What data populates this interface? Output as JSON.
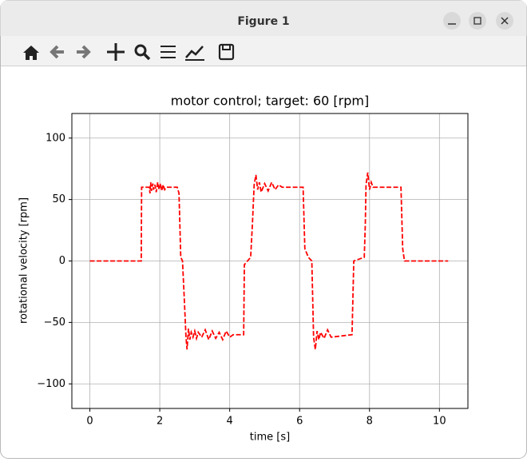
{
  "window": {
    "title": "Figure 1"
  },
  "chart_data": {
    "type": "line",
    "title": "motor control; target: 60 [rpm]",
    "x_label": "time [s]",
    "y_label": "rotational velocity [rpm]",
    "x": [
      0,
      1.47,
      1.48,
      1.7,
      1.72,
      1.74,
      1.76,
      1.8,
      1.82,
      1.86,
      1.9,
      1.94,
      1.98,
      2.02,
      2.06,
      2.1,
      2.14,
      2.2,
      2.5,
      2.55,
      2.6,
      2.65,
      2.7,
      2.75,
      2.78,
      2.82,
      2.86,
      2.9,
      2.95,
      3.0,
      3.05,
      3.1,
      3.2,
      3.3,
      3.4,
      3.5,
      3.6,
      3.7,
      3.8,
      3.9,
      4.0,
      4.1,
      4.4,
      4.42,
      4.6,
      4.65,
      4.7,
      4.75,
      4.8,
      4.85,
      4.9,
      5.0,
      5.1,
      5.2,
      5.3,
      5.4,
      5.5,
      6.1,
      6.15,
      6.25,
      6.35,
      6.4,
      6.45,
      6.5,
      6.55,
      6.6,
      6.7,
      6.8,
      6.9,
      7.5,
      7.55,
      7.85,
      7.88,
      7.9,
      7.95,
      8.0,
      8.05,
      8.1,
      8.9,
      8.95,
      9.0,
      10.25
    ],
    "series": [
      {
        "color": "#ff0000",
        "dashed": true,
        "values": [
          0,
          0,
          60,
          60,
          55,
          64,
          57,
          63,
          58,
          62,
          56,
          64,
          58,
          63,
          57,
          62,
          58,
          60,
          60,
          55,
          3,
          0,
          -30,
          -62,
          -72,
          -55,
          -64,
          -58,
          -62,
          -57,
          -63,
          -58,
          -62,
          -56,
          -64,
          -57,
          -63,
          -58,
          -64,
          -57,
          -62,
          -60,
          -60,
          -3,
          3,
          30,
          62,
          70,
          58,
          64,
          56,
          63,
          57,
          64,
          58,
          62,
          60,
          60,
          10,
          3,
          0,
          -62,
          -72,
          -57,
          -64,
          -58,
          -63,
          -56,
          -62,
          -60,
          0,
          3,
          30,
          62,
          72,
          58,
          64,
          60,
          60,
          10,
          0,
          0
        ]
      }
    ],
    "xlim": [
      -0.515,
      10.815
    ],
    "ylim": [
      -120,
      120
    ],
    "xticks": [
      0,
      2,
      4,
      6,
      8,
      10
    ],
    "yticks": [
      {
        "value": -100,
        "label": "−100"
      },
      {
        "value": -50,
        "label": "−50"
      },
      0,
      50,
      100
    ],
    "grid": true
  }
}
